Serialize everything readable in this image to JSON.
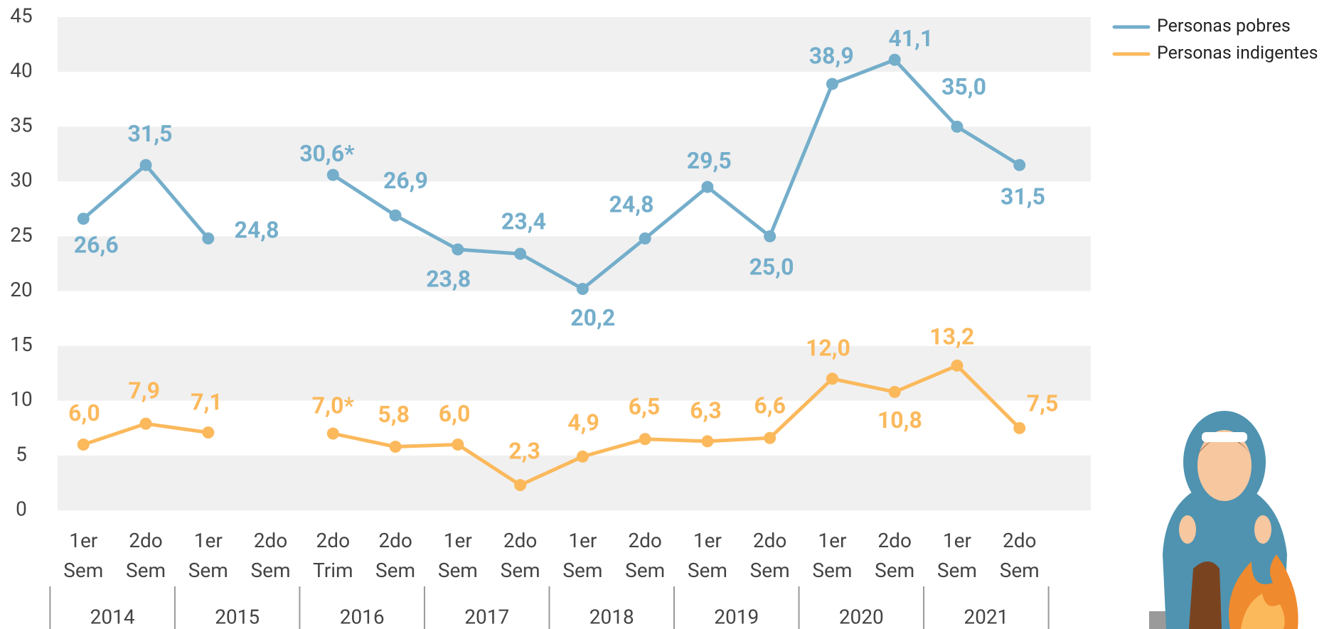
{
  "chart_data": {
    "type": "line",
    "categories": [
      "1er Sem",
      "2do Sem",
      "1er Sem",
      "2do Sem",
      "2do Trim",
      "2do Sem",
      "1er Sem",
      "2do Sem",
      "1er Sem",
      "2do Sem",
      "1er Sem",
      "2do Sem",
      "1er Sem",
      "2do Sem",
      "1er Sem",
      "2do Sem"
    ],
    "groups": [
      "2014",
      "2015",
      "2016",
      "2017",
      "2018",
      "2019",
      "2020",
      "2021"
    ],
    "series": [
      {
        "name": "Personas pobres",
        "color": "#74aecb",
        "values": [
          26.6,
          31.5,
          24.8,
          null,
          30.6,
          26.9,
          23.8,
          23.4,
          20.2,
          24.8,
          29.5,
          25.0,
          38.9,
          41.1,
          35.0,
          31.5
        ],
        "value_labels": [
          "26,6",
          "31,5",
          "24,8",
          null,
          "30,6*",
          "26,9",
          "23,8",
          "23,4",
          "20,2",
          "24,8",
          "29,5",
          "25,0",
          "38,9",
          "41,1",
          "35,0",
          "31,5"
        ]
      },
      {
        "name": "Personas indigentes",
        "color": "#fbb95c",
        "values": [
          6.0,
          7.9,
          7.1,
          null,
          7.0,
          5.8,
          6.0,
          2.3,
          4.9,
          6.5,
          6.3,
          6.6,
          12.0,
          10.8,
          13.2,
          7.5
        ],
        "value_labels": [
          "6,0",
          "7,9",
          "7,1",
          null,
          "7,0*",
          "5,8",
          "6,0",
          "2,3",
          "4,9",
          "6,5",
          "6,3",
          "6,6",
          "12,0",
          "10,8",
          "13,2",
          "7,5"
        ]
      }
    ],
    "ylim": [
      0,
      45
    ],
    "yticks": [
      0,
      5,
      10,
      15,
      20,
      25,
      30,
      35,
      40,
      45
    ],
    "grid": "bands",
    "legend": "top-right"
  }
}
